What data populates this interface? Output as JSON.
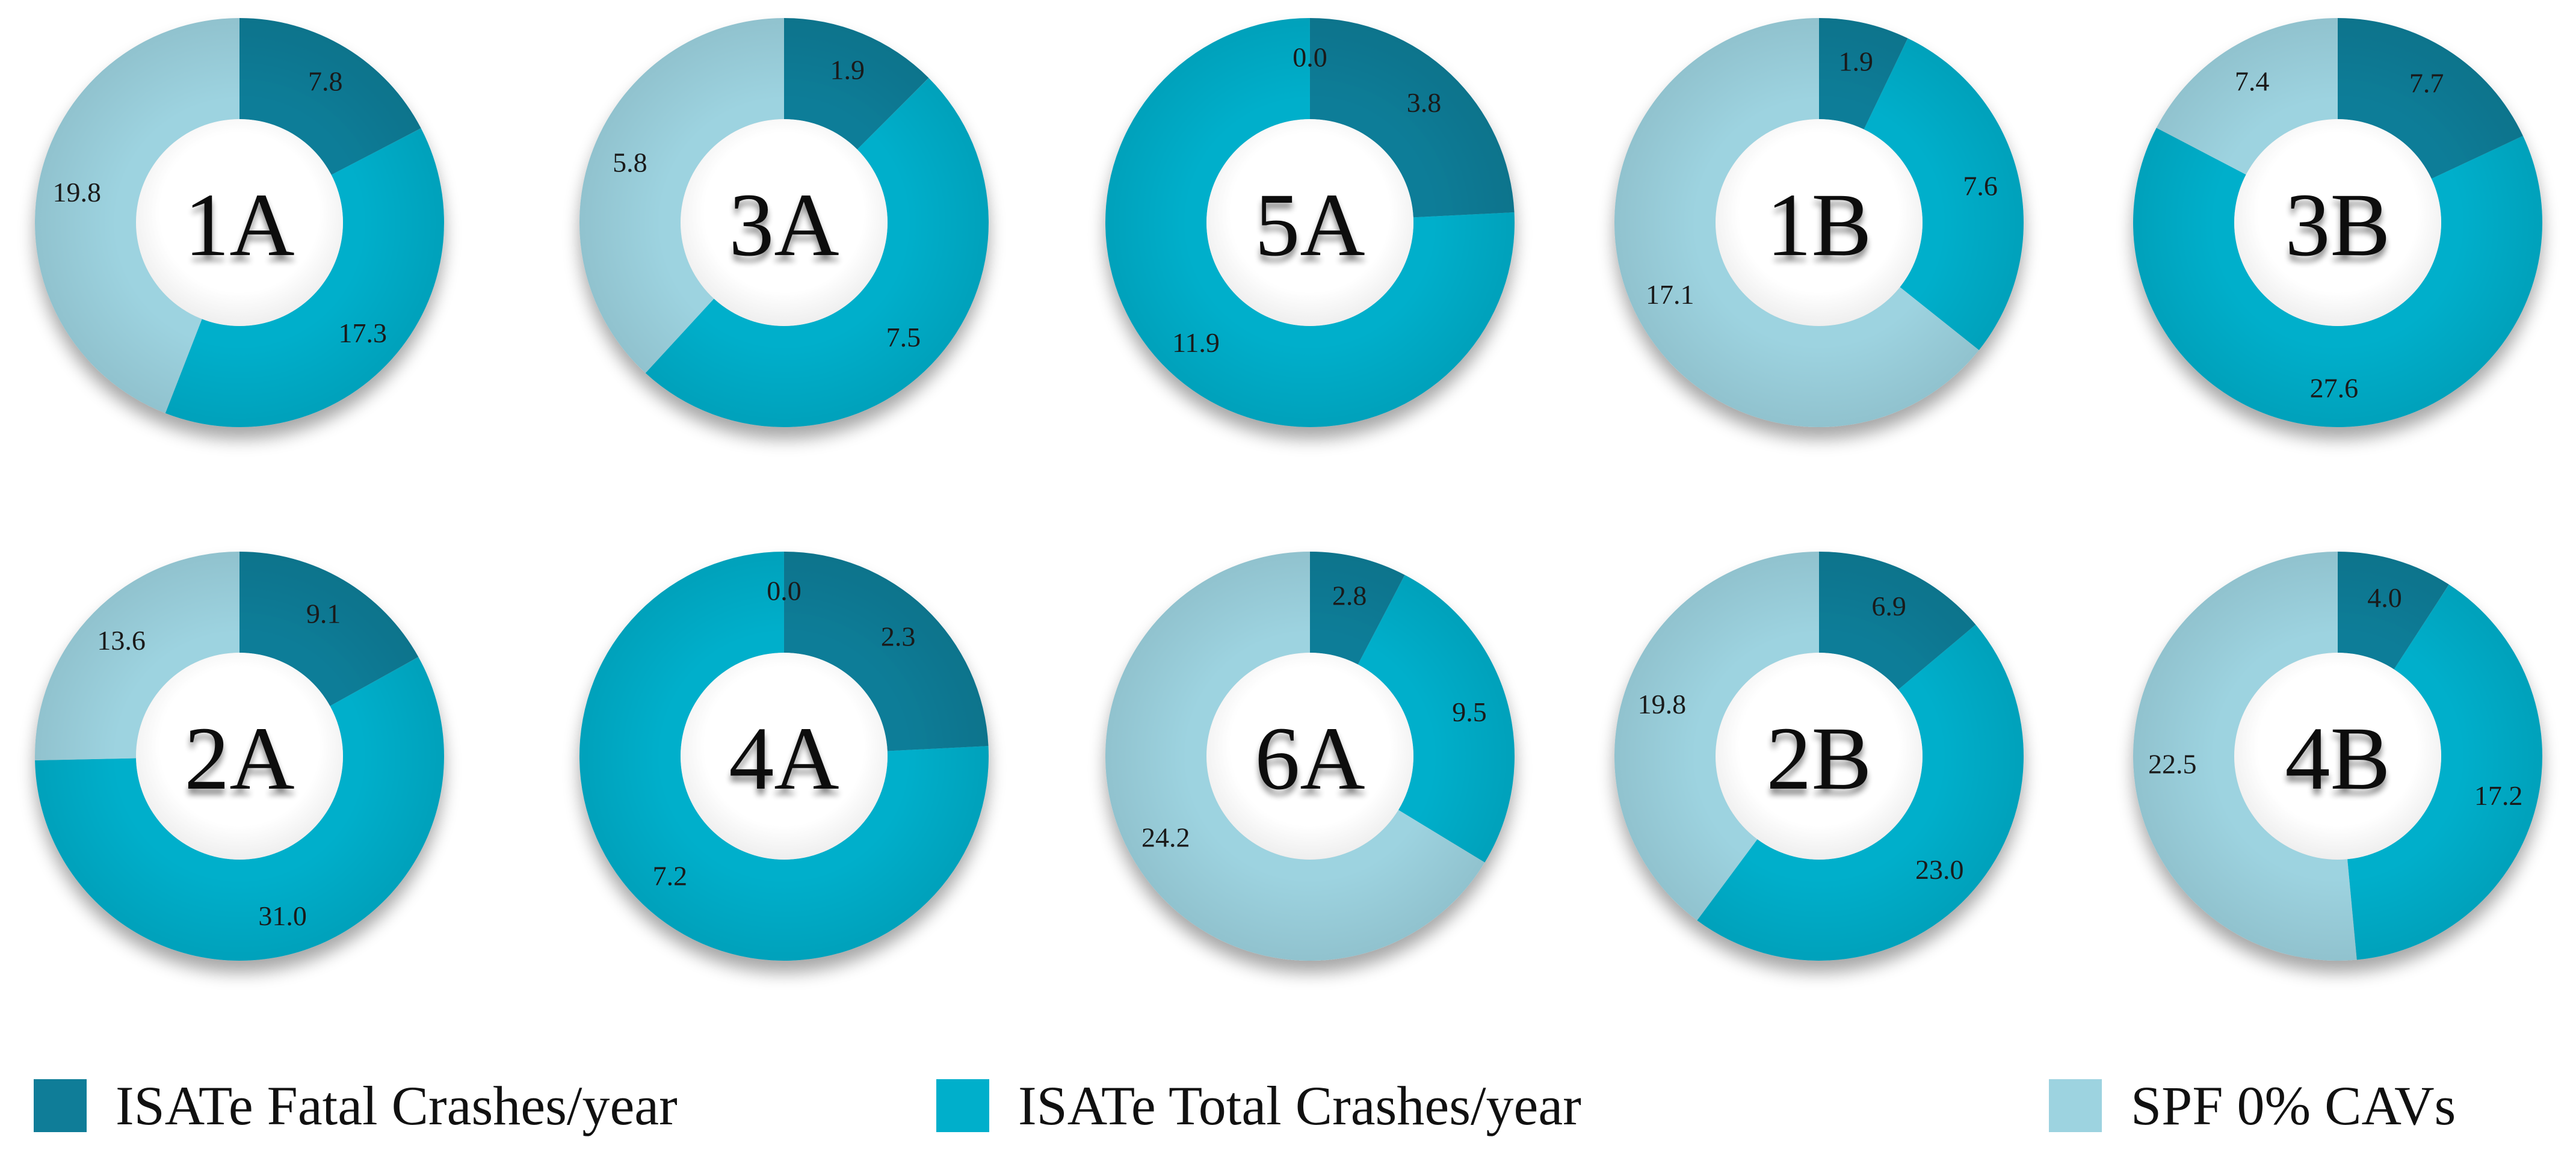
{
  "chart_data": {
    "type": "pie",
    "variant": "donut",
    "legend": {
      "placement": "bottom",
      "entries": [
        {
          "label": "ISATe Fatal Crashes/year",
          "color": "#0f7d98"
        },
        {
          "label": "ISATe Total Crashes/year",
          "color": "#00afcb"
        },
        {
          "label": "SPF 0% CAVs",
          "color": "#9dd3e0"
        }
      ]
    },
    "colors": {
      "fatal": "#0f7d98",
      "total": "#00afcb",
      "spf": "#9dd3e0"
    },
    "charts": [
      {
        "id": "1A",
        "label": "1A",
        "values": {
          "fatal": 7.8,
          "total": 17.3,
          "spf": 19.8
        }
      },
      {
        "id": "3A",
        "label": "3A",
        "values": {
          "fatal": 1.9,
          "total": 7.5,
          "spf": 5.8
        }
      },
      {
        "id": "5A",
        "label": "5A",
        "values": {
          "fatal": 3.8,
          "total": 11.9,
          "spf": 0.0
        }
      },
      {
        "id": "1B",
        "label": "1B",
        "values": {
          "fatal": 1.9,
          "total": 7.6,
          "spf": 17.1
        }
      },
      {
        "id": "3B",
        "label": "3B",
        "values": {
          "fatal": 7.7,
          "total": 27.6,
          "spf": 7.4
        }
      },
      {
        "id": "2A",
        "label": "2A",
        "values": {
          "fatal": 9.1,
          "total": 31.0,
          "spf": 13.6
        }
      },
      {
        "id": "4A",
        "label": "4A",
        "values": {
          "fatal": 2.3,
          "total": 7.2,
          "spf": 0.0
        }
      },
      {
        "id": "6A",
        "label": "6A",
        "values": {
          "fatal": 2.8,
          "total": 9.5,
          "spf": 24.2
        }
      },
      {
        "id": "2B",
        "label": "2B",
        "values": {
          "fatal": 6.9,
          "total": 23.0,
          "spf": 19.8
        }
      },
      {
        "id": "4B",
        "label": "4B",
        "values": {
          "fatal": 4.0,
          "total": 17.2,
          "spf": 22.5
        }
      }
    ]
  }
}
